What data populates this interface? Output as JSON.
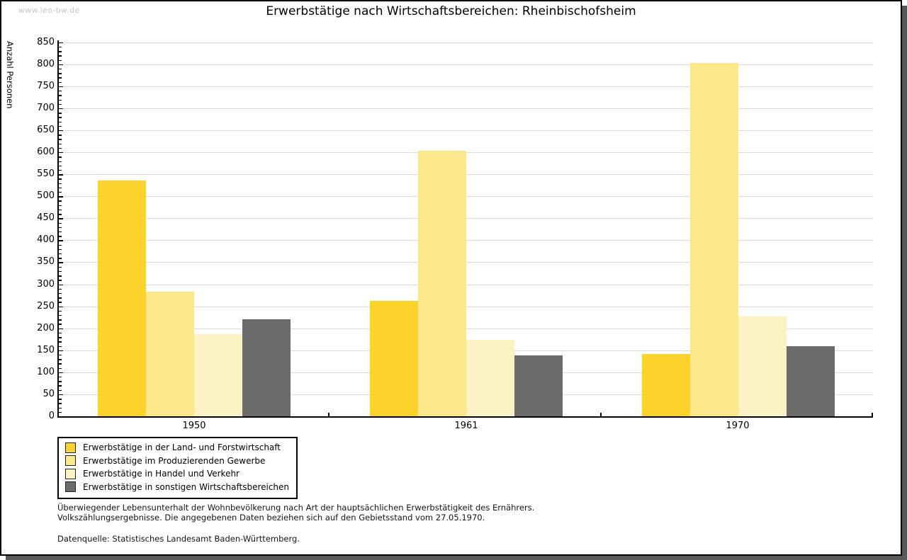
{
  "watermark": "www.leo-bw.de",
  "title": "Erwerbstätige nach Wirtschaftsbereichen: Rheinbischofsheim",
  "chart_data": {
    "type": "bar",
    "title": "Erwerbstätige nach Wirtschaftsbereichen: Rheinbischofsheim",
    "categories": [
      "1950",
      "1961",
      "1970"
    ],
    "series": [
      {
        "name": "Erwerbstätige in der Land- und Forstwirtschaft",
        "color": "#fbd32b",
        "values": [
          535,
          263,
          141
        ]
      },
      {
        "name": "Erwerbstätige im Produzierenden Gewerbe",
        "color": "#fbe88a",
        "values": [
          283,
          604,
          803
        ]
      },
      {
        "name": "Erwerbstätige in Handel und Verkehr",
        "color": "#fcf3c5",
        "values": [
          187,
          174,
          227
        ]
      },
      {
        "name": "Erwerbstätige in sonstigen Wirtschaftsbereichen",
        "color": "#6b6b6b",
        "values": [
          220,
          138,
          159
        ]
      }
    ],
    "xlabel": "",
    "ylabel": "Anzahl Personen",
    "ylim": [
      0,
      850
    ],
    "ytick_step": 50,
    "yminor_step": 10,
    "yticks": [
      0,
      50,
      100,
      150,
      200,
      250,
      300,
      350,
      400,
      450,
      500,
      550,
      600,
      650,
      700,
      750,
      800,
      850
    ],
    "grid": true,
    "legend_position": "bottom-left",
    "colors": {
      "grid": "#dbdbdb",
      "axis": "#000000",
      "watermark": "#c8c8c8"
    }
  },
  "footer": {
    "line1": "Überwiegender Lebensunterhalt der Wohnbevölkerung nach Art der hauptsächlichen Erwerbstätigkeit des Ernährers.",
    "line2": "Volkszählungsergebnisse. Die angegebenen Daten beziehen sich auf den Gebietsstand vom 27.05.1970.",
    "source": "Datenquelle: Statistisches Landesamt Baden-Württemberg."
  }
}
